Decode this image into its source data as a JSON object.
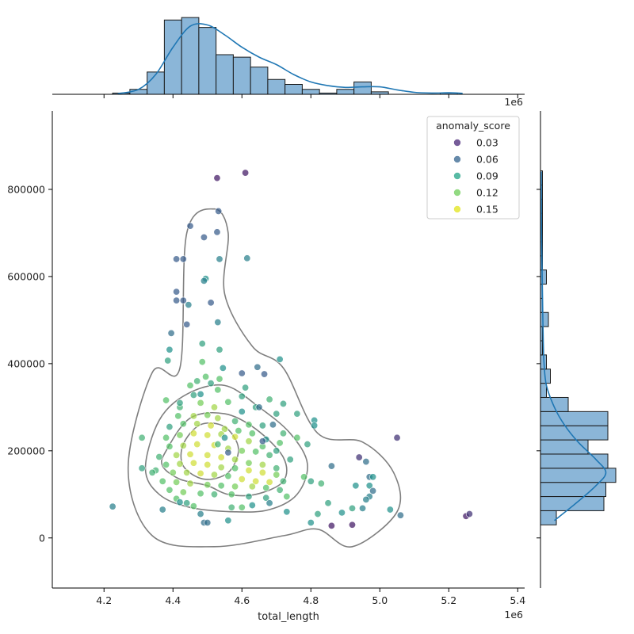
{
  "chart_data": {
    "type": "scatter",
    "xlabel": "total_length",
    "ylabel": "",
    "x_offset_label": "1e6",
    "x_ticks": [
      4.2,
      4.4,
      4.6,
      4.8,
      5.0,
      5.2,
      5.4
    ],
    "y_ticks": [
      0,
      200000,
      400000,
      600000,
      800000
    ],
    "xlim": [
      4.05,
      5.42
    ],
    "ylim": [
      -115000,
      980000
    ],
    "x_unit_multiplier": 1000000,
    "legend": {
      "title": "anomaly_score",
      "placement": "top-right",
      "entries": [
        {
          "label": "0.03",
          "color": "#482677"
        },
        {
          "label": "0.06",
          "color": "#33638d"
        },
        {
          "label": "0.09",
          "color": "#20a386"
        },
        {
          "label": "0.12",
          "color": "#6ece58"
        },
        {
          "label": "0.15",
          "color": "#e2e418"
        }
      ]
    },
    "colors": {
      "hist_fill": "#8bb6d8",
      "hist_edge": "#1a1a1a",
      "kde_line": "#1f77b4",
      "contour": "#7f7f7f"
    },
    "top_histogram": {
      "bin_edges": [
        4.225,
        4.275,
        4.325,
        4.375,
        4.425,
        4.475,
        4.525,
        4.575,
        4.625,
        4.675,
        4.725,
        4.775,
        4.825,
        4.875,
        4.925,
        4.975,
        5.025,
        5.075,
        5.125,
        5.175,
        5.225,
        5.275
      ],
      "counts": [
        0.5,
        2,
        9,
        30,
        31,
        27,
        16,
        15,
        11,
        6,
        4,
        2,
        0.5,
        2,
        5,
        1,
        0,
        0,
        0,
        0.5,
        0
      ]
    },
    "top_kde": [
      [
        4.24,
        0.3
      ],
      [
        4.3,
        2
      ],
      [
        4.35,
        8
      ],
      [
        4.4,
        19
      ],
      [
        4.45,
        27.5
      ],
      [
        4.5,
        28
      ],
      [
        4.55,
        24
      ],
      [
        4.6,
        19
      ],
      [
        4.65,
        15
      ],
      [
        4.7,
        12
      ],
      [
        4.75,
        8
      ],
      [
        4.8,
        5
      ],
      [
        4.85,
        3.5
      ],
      [
        4.9,
        2.8
      ],
      [
        4.95,
        3
      ],
      [
        5.0,
        3
      ],
      [
        5.05,
        1.8
      ],
      [
        5.1,
        0.8
      ],
      [
        5.15,
        0.5
      ],
      [
        5.2,
        0.6
      ],
      [
        5.24,
        0.4
      ]
    ],
    "right_histogram": {
      "bin_edges": [
        30000,
        62500,
        95000,
        127500,
        160000,
        192500,
        225000,
        257500,
        290000,
        322500,
        355000,
        387500,
        420000,
        452500,
        485000,
        517500,
        550000,
        582500,
        615000,
        647500,
        680000,
        712500,
        745000,
        777500,
        810000,
        842500
      ],
      "counts": [
        4,
        16,
        16.5,
        19,
        17,
        12,
        17,
        17,
        7,
        1.5,
        2.5,
        1.5,
        0.5,
        0.5,
        2,
        0.5,
        0.5,
        1.5,
        0.5,
        0.5,
        0.5,
        0.5,
        0.5,
        0.5,
        0.5
      ]
    },
    "right_kde": [
      [
        40000,
        3.5
      ],
      [
        80000,
        9
      ],
      [
        120000,
        14
      ],
      [
        150000,
        16.5
      ],
      [
        180000,
        14
      ],
      [
        220000,
        9.5
      ],
      [
        260000,
        6
      ],
      [
        300000,
        3.5
      ],
      [
        350000,
        1.5
      ],
      [
        400000,
        0.9
      ],
      [
        450000,
        0.7
      ],
      [
        500000,
        0.6
      ],
      [
        560000,
        0.5
      ],
      [
        620000,
        0.4
      ],
      [
        700000,
        0.25
      ],
      [
        780000,
        0.2
      ],
      [
        840000,
        0.15
      ]
    ],
    "contours": [
      [
        [
          4.42,
          390000
        ],
        [
          4.44,
          700000
        ],
        [
          4.52,
          755000
        ],
        [
          4.56,
          700000
        ],
        [
          4.55,
          560000
        ],
        [
          4.63,
          440000
        ],
        [
          4.72,
          390000
        ],
        [
          4.82,
          240000
        ],
        [
          4.95,
          220000
        ],
        [
          5.04,
          150000
        ],
        [
          5.05,
          60000
        ],
        [
          4.92,
          -20000
        ],
        [
          4.82,
          20000
        ],
        [
          4.72,
          5000
        ],
        [
          4.52,
          -20000
        ],
        [
          4.34,
          5000
        ],
        [
          4.27,
          160000
        ],
        [
          4.34,
          380000
        ]
      ],
      [
        [
          4.32,
          160000
        ],
        [
          4.36,
          270000
        ],
        [
          4.44,
          330000
        ],
        [
          4.55,
          350000
        ],
        [
          4.65,
          300000
        ],
        [
          4.74,
          240000
        ],
        [
          4.79,
          170000
        ],
        [
          4.76,
          100000
        ],
        [
          4.68,
          65000
        ],
        [
          4.58,
          60000
        ],
        [
          4.45,
          70000
        ],
        [
          4.36,
          100000
        ]
      ],
      [
        [
          4.38,
          200000
        ],
        [
          4.45,
          275000
        ],
        [
          4.55,
          285000
        ],
        [
          4.64,
          250000
        ],
        [
          4.72,
          185000
        ],
        [
          4.72,
          130000
        ],
        [
          4.64,
          100000
        ],
        [
          4.56,
          100000
        ],
        [
          4.5,
          120000
        ],
        [
          4.42,
          135000
        ],
        [
          4.37,
          165000
        ]
      ],
      [
        [
          4.43,
          215000
        ],
        [
          4.48,
          260000
        ],
        [
          4.55,
          255000
        ],
        [
          4.59,
          205000
        ],
        [
          4.56,
          150000
        ],
        [
          4.49,
          135000
        ],
        [
          4.43,
          165000
        ]
      ]
    ],
    "points": [
      [
        4.528,
        826000,
        0.03
      ],
      [
        4.61,
        838000,
        0.03
      ],
      [
        4.532,
        750000,
        0.06
      ],
      [
        4.45,
        716000,
        0.06
      ],
      [
        4.528,
        702000,
        0.06
      ],
      [
        4.49,
        690000,
        0.06
      ],
      [
        4.41,
        640000,
        0.06
      ],
      [
        4.43,
        640000,
        0.06
      ],
      [
        4.535,
        640000,
        0.08
      ],
      [
        4.615,
        642000,
        0.08
      ],
      [
        4.495,
        595000,
        0.09
      ],
      [
        4.49,
        590000,
        0.08
      ],
      [
        4.41,
        565000,
        0.06
      ],
      [
        4.41,
        545000,
        0.06
      ],
      [
        4.43,
        545000,
        0.06
      ],
      [
        4.445,
        535000,
        0.08
      ],
      [
        4.51,
        540000,
        0.06
      ],
      [
        4.44,
        490000,
        0.06
      ],
      [
        4.53,
        495000,
        0.08
      ],
      [
        4.395,
        470000,
        0.07
      ],
      [
        4.485,
        446000,
        0.1
      ],
      [
        4.39,
        432000,
        0.09
      ],
      [
        4.535,
        432000,
        0.1
      ],
      [
        4.385,
        407000,
        0.1
      ],
      [
        4.485,
        404000,
        0.12
      ],
      [
        4.71,
        410000,
        0.09
      ],
      [
        4.6,
        378000,
        0.06
      ],
      [
        4.645,
        392000,
        0.07
      ],
      [
        4.665,
        376000,
        0.06
      ],
      [
        4.47,
        360000,
        0.11
      ],
      [
        4.545,
        390000,
        0.09
      ],
      [
        4.495,
        370000,
        0.12
      ],
      [
        4.535,
        365000,
        0.12
      ],
      [
        4.61,
        345000,
        0.1
      ],
      [
        4.38,
        316000,
        0.12
      ],
      [
        4.46,
        328000,
        0.1
      ],
      [
        4.53,
        340000,
        0.12
      ],
      [
        4.6,
        325000,
        0.1
      ],
      [
        4.68,
        318000,
        0.11
      ],
      [
        4.72,
        308000,
        0.1
      ],
      [
        4.76,
        285000,
        0.1
      ],
      [
        4.81,
        270000,
        0.09
      ],
      [
        4.81,
        258000,
        0.09
      ],
      [
        4.42,
        300000,
        0.11
      ],
      [
        4.48,
        310000,
        0.13
      ],
      [
        4.52,
        300000,
        0.14
      ],
      [
        4.56,
        312000,
        0.12
      ],
      [
        4.64,
        300000,
        0.1
      ],
      [
        4.7,
        285000,
        0.1
      ],
      [
        4.415,
        280000,
        0.12
      ],
      [
        4.46,
        280000,
        0.14
      ],
      [
        4.5,
        282000,
        0.13
      ],
      [
        4.53,
        275000,
        0.14
      ],
      [
        4.58,
        268000,
        0.11
      ],
      [
        4.62,
        260000,
        0.12
      ],
      [
        4.66,
        258000,
        0.1
      ],
      [
        4.69,
        260000,
        0.07
      ],
      [
        4.72,
        240000,
        0.11
      ],
      [
        4.76,
        230000,
        0.12
      ],
      [
        4.39,
        255000,
        0.1
      ],
      [
        4.43,
        262000,
        0.12
      ],
      [
        4.47,
        262000,
        0.14
      ],
      [
        4.51,
        258000,
        0.15
      ],
      [
        4.55,
        250000,
        0.14
      ],
      [
        4.59,
        246000,
        0.12
      ],
      [
        4.63,
        240000,
        0.12
      ],
      [
        4.67,
        226000,
        0.09
      ],
      [
        4.71,
        218000,
        0.12
      ],
      [
        4.79,
        215000,
        0.1
      ],
      [
        4.31,
        230000,
        0.11
      ],
      [
        4.38,
        230000,
        0.12
      ],
      [
        4.42,
        236000,
        0.13
      ],
      [
        4.46,
        240000,
        0.15
      ],
      [
        4.5,
        236000,
        0.15
      ],
      [
        4.54,
        238000,
        0.14
      ],
      [
        4.58,
        232000,
        0.15
      ],
      [
        4.62,
        222000,
        0.14
      ],
      [
        4.66,
        210000,
        0.12
      ],
      [
        4.7,
        200000,
        0.1
      ],
      [
        4.39,
        210000,
        0.12
      ],
      [
        4.43,
        212000,
        0.14
      ],
      [
        4.47,
        215000,
        0.15
      ],
      [
        4.52,
        213000,
        0.15
      ],
      [
        4.56,
        205000,
        0.14
      ],
      [
        4.6,
        200000,
        0.13
      ],
      [
        4.64,
        198000,
        0.12
      ],
      [
        4.68,
        190000,
        0.11
      ],
      [
        4.74,
        180000,
        0.1
      ],
      [
        4.36,
        186000,
        0.11
      ],
      [
        4.41,
        190000,
        0.14
      ],
      [
        4.45,
        192000,
        0.15
      ],
      [
        4.5,
        190000,
        0.15
      ],
      [
        4.54,
        185000,
        0.15
      ],
      [
        4.58,
        180000,
        0.14
      ],
      [
        4.62,
        172000,
        0.13
      ],
      [
        4.66,
        168000,
        0.14
      ],
      [
        4.7,
        160000,
        0.11
      ],
      [
        4.38,
        168000,
        0.12
      ],
      [
        4.42,
        170000,
        0.14
      ],
      [
        4.46,
        172000,
        0.15
      ],
      [
        4.5,
        168000,
        0.15
      ],
      [
        4.54,
        162000,
        0.14
      ],
      [
        4.58,
        160000,
        0.12
      ],
      [
        4.62,
        155000,
        0.15
      ],
      [
        4.66,
        150000,
        0.15
      ],
      [
        4.7,
        145000,
        0.13
      ],
      [
        4.35,
        155000,
        0.11
      ],
      [
        4.4,
        150000,
        0.13
      ],
      [
        4.44,
        150000,
        0.14
      ],
      [
        4.48,
        148000,
        0.15
      ],
      [
        4.52,
        145000,
        0.14
      ],
      [
        4.56,
        142000,
        0.12
      ],
      [
        4.6,
        135000,
        0.15
      ],
      [
        4.64,
        130000,
        0.15
      ],
      [
        4.68,
        128000,
        0.15
      ],
      [
        4.72,
        130000,
        0.11
      ],
      [
        4.37,
        130000,
        0.12
      ],
      [
        4.41,
        128000,
        0.13
      ],
      [
        4.45,
        125000,
        0.14
      ],
      [
        4.5,
        122000,
        0.13
      ],
      [
        4.54,
        120000,
        0.12
      ],
      [
        4.58,
        118000,
        0.13
      ],
      [
        4.63,
        118000,
        0.14
      ],
      [
        4.67,
        115000,
        0.12
      ],
      [
        4.71,
        110000,
        0.11
      ],
      [
        4.39,
        110000,
        0.12
      ],
      [
        4.43,
        105000,
        0.13
      ],
      [
        4.48,
        102000,
        0.12
      ],
      [
        4.52,
        100000,
        0.11
      ],
      [
        4.57,
        100000,
        0.12
      ],
      [
        4.62,
        95000,
        0.1
      ],
      [
        4.67,
        92000,
        0.1
      ],
      [
        4.73,
        95000,
        0.12
      ],
      [
        4.83,
        125000,
        0.11
      ],
      [
        4.8,
        130000,
        0.1
      ],
      [
        4.78,
        140000,
        0.12
      ],
      [
        4.86,
        165000,
        0.07
      ],
      [
        4.94,
        185000,
        0.04
      ],
      [
        4.96,
        175000,
        0.07
      ],
      [
        4.93,
        120000,
        0.09
      ],
      [
        4.97,
        140000,
        0.07
      ],
      [
        4.98,
        140000,
        0.09
      ],
      [
        4.97,
        120000,
        0.09
      ],
      [
        4.98,
        108000,
        0.07
      ],
      [
        4.97,
        95000,
        0.08
      ],
      [
        4.96,
        88000,
        0.08
      ],
      [
        4.95,
        68000,
        0.08
      ],
      [
        4.92,
        68000,
        0.1
      ],
      [
        4.89,
        58000,
        0.09
      ],
      [
        4.85,
        80000,
        0.1
      ],
      [
        4.82,
        55000,
        0.1
      ],
      [
        4.8,
        35000,
        0.09
      ],
      [
        5.05,
        230000,
        0.04
      ],
      [
        5.06,
        52000,
        0.07
      ],
      [
        5.03,
        65000,
        0.09
      ],
      [
        4.86,
        28000,
        0.03
      ],
      [
        4.92,
        30000,
        0.03
      ],
      [
        5.25,
        50000,
        0.03
      ],
      [
        5.26,
        55000,
        0.04
      ],
      [
        4.225,
        72000,
        0.08
      ],
      [
        4.31,
        160000,
        0.1
      ],
      [
        4.34,
        150000,
        0.11
      ],
      [
        4.37,
        65000,
        0.08
      ],
      [
        4.41,
        90000,
        0.12
      ],
      [
        4.42,
        82000,
        0.09
      ],
      [
        4.44,
        80000,
        0.1
      ],
      [
        4.46,
        73000,
        0.12
      ],
      [
        4.48,
        55000,
        0.08
      ],
      [
        4.49,
        35000,
        0.07
      ],
      [
        4.5,
        35000,
        0.07
      ],
      [
        4.56,
        40000,
        0.09
      ],
      [
        4.57,
        70000,
        0.11
      ],
      [
        4.6,
        70000,
        0.12
      ],
      [
        4.63,
        75000,
        0.09
      ],
      [
        4.68,
        80000,
        0.08
      ],
      [
        4.73,
        60000,
        0.09
      ],
      [
        4.66,
        222000,
        0.06
      ],
      [
        4.65,
        300000,
        0.07
      ],
      [
        4.6,
        290000,
        0.09
      ],
      [
        4.42,
        310000,
        0.1
      ],
      [
        4.48,
        330000,
        0.09
      ],
      [
        4.45,
        350000,
        0.12
      ],
      [
        4.51,
        355000,
        0.1
      ],
      [
        4.56,
        196000,
        0.06
      ],
      [
        4.55,
        230000,
        0.09
      ],
      [
        4.53,
        215000,
        0.11
      ]
    ]
  }
}
